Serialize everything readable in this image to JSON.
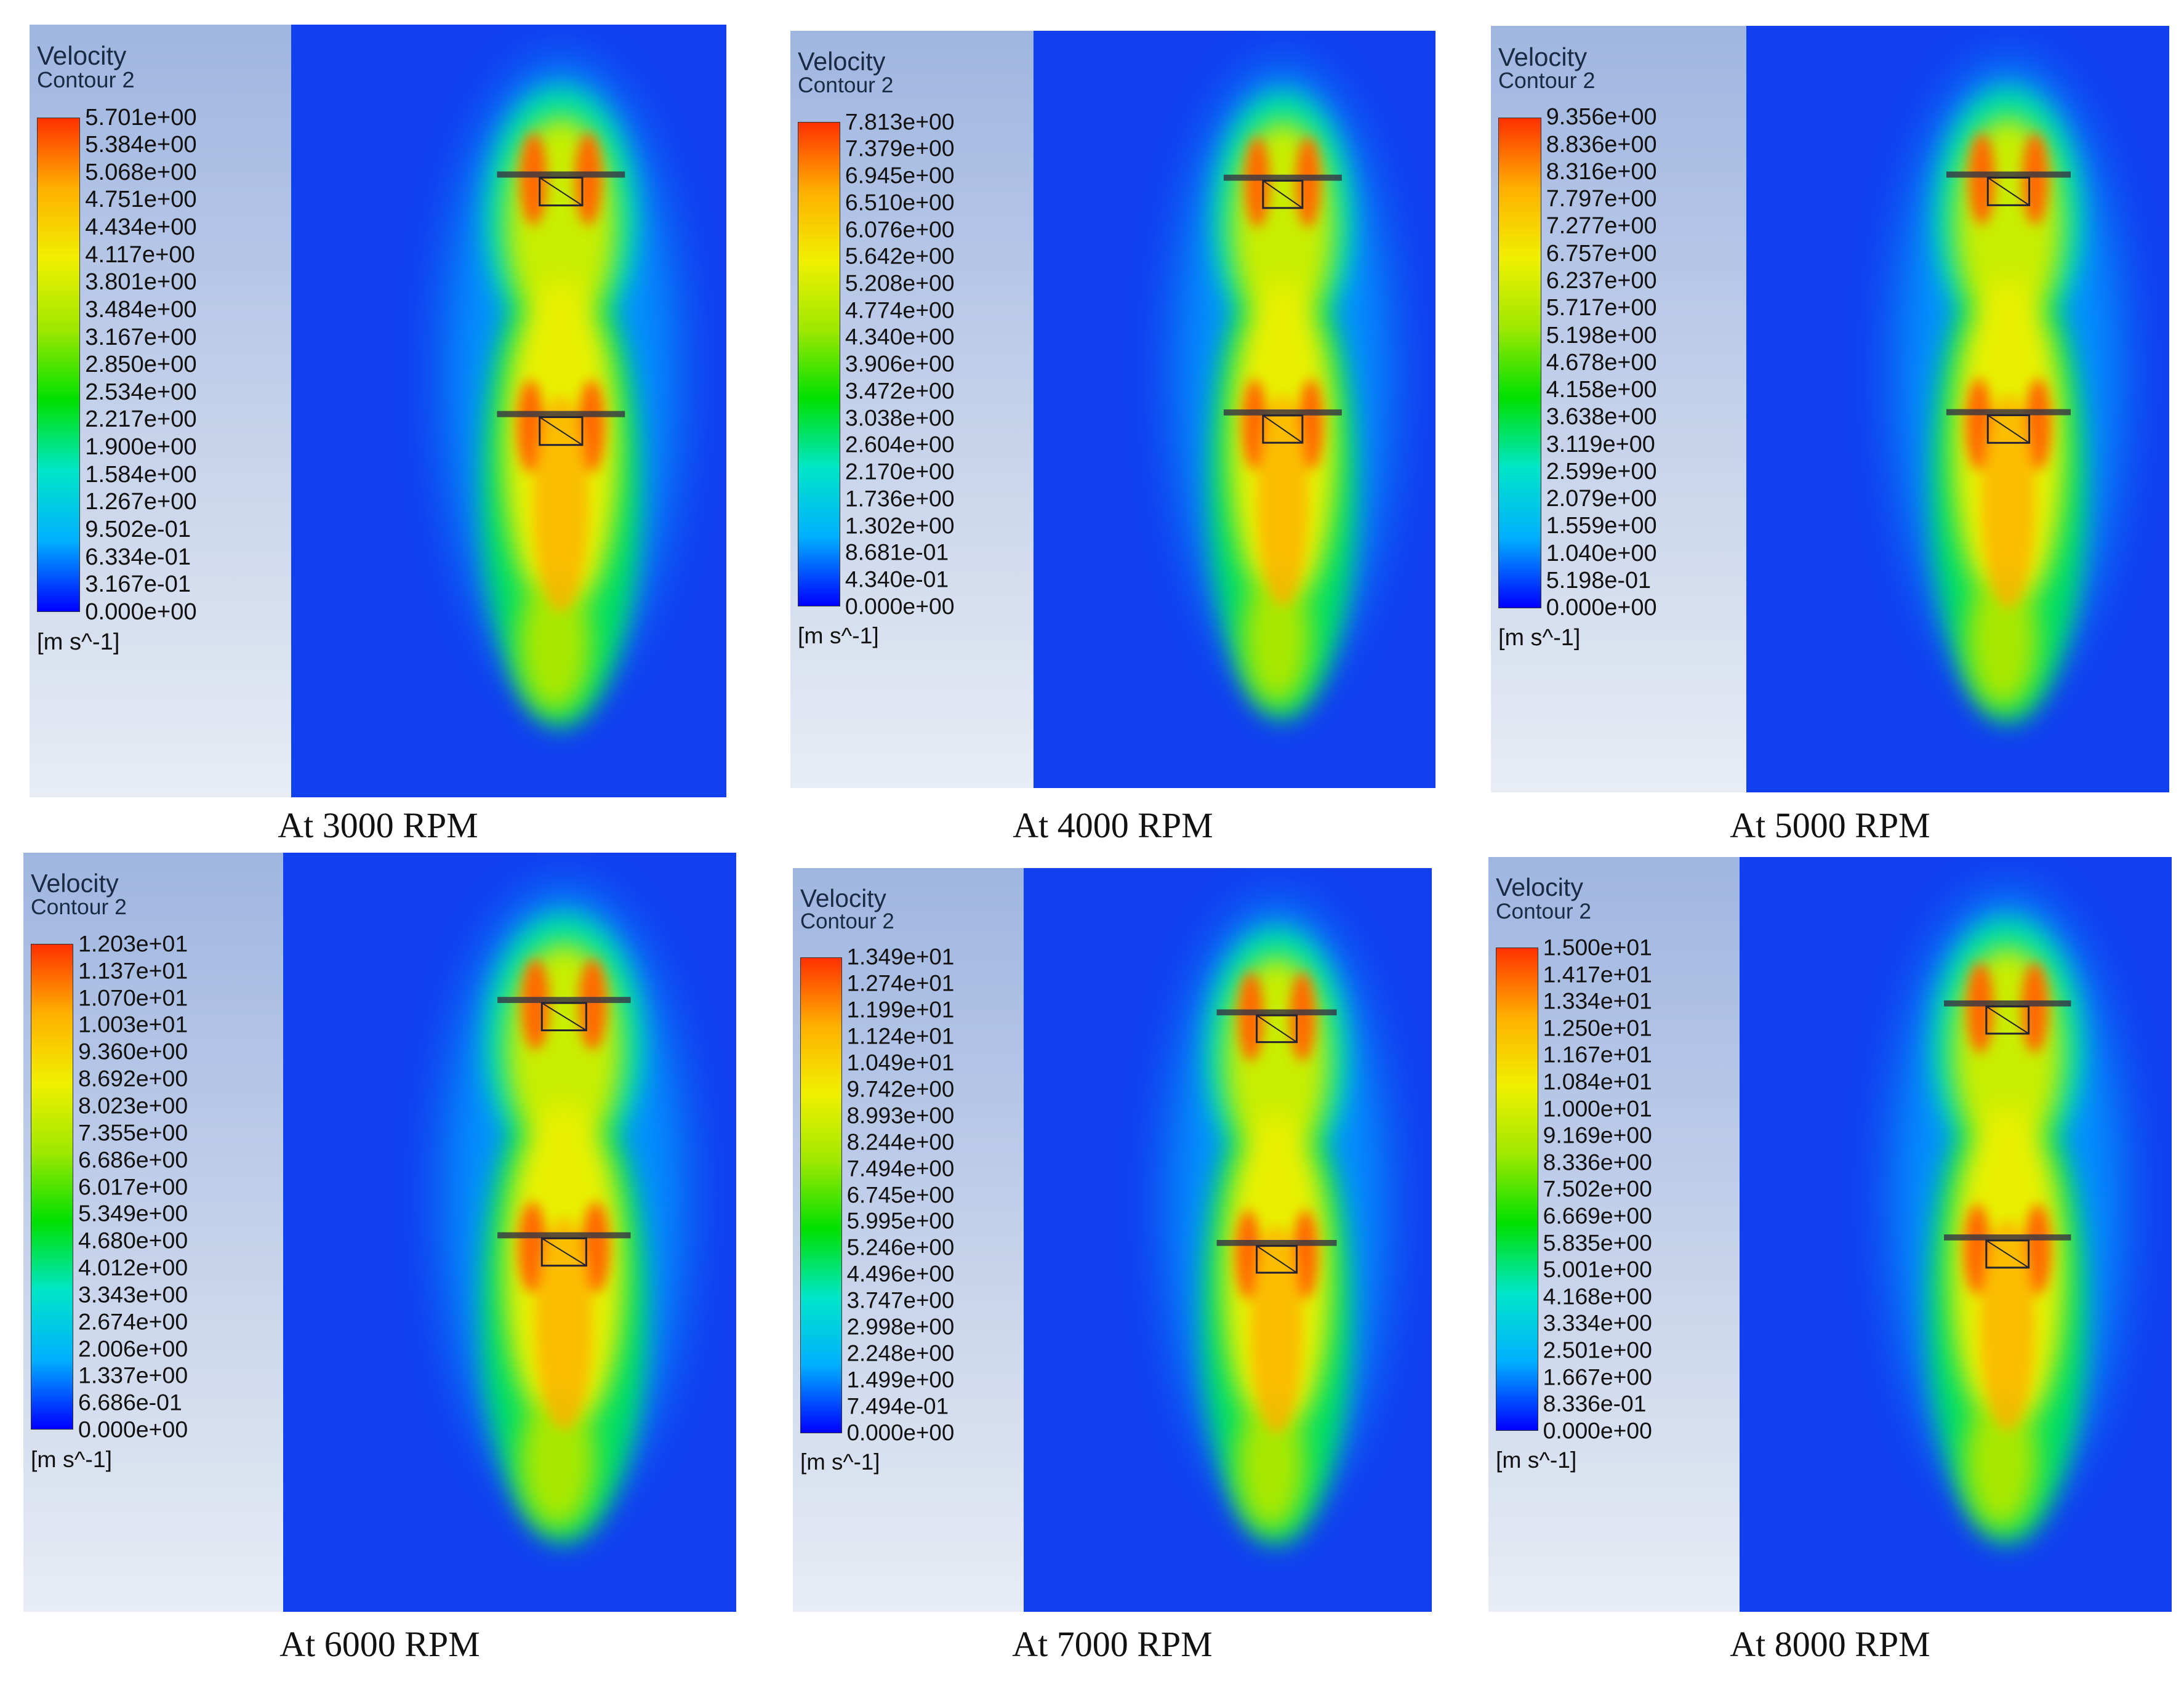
{
  "colors": {
    "legend_bg_top": "#9fb6e0",
    "legend_bg_bottom": "#e8ecf4",
    "field_bg": "#1040f0",
    "scale": [
      "#0000ff",
      "#00b0ff",
      "#00e6c8",
      "#00e000",
      "#9ee800",
      "#f0f000",
      "#ffb000",
      "#ff3000"
    ]
  },
  "panels": [
    {
      "legend_title_1": "Velocity",
      "legend_title_2": "Contour 2",
      "unit": "[m s^-1]",
      "ticks": [
        "5.701e+00",
        "5.384e+00",
        "5.068e+00",
        "4.751e+00",
        "4.434e+00",
        "4.117e+00",
        "3.801e+00",
        "3.484e+00",
        "3.167e+00",
        "2.850e+00",
        "2.534e+00",
        "2.217e+00",
        "1.900e+00",
        "1.584e+00",
        "1.267e+00",
        "9.502e-01",
        "6.334e-01",
        "3.167e-01",
        "0.000e+00"
      ],
      "caption": "At 3000 RPM"
    },
    {
      "legend_title_1": "Velocity",
      "legend_title_2": "Contour 2",
      "unit": "[m s^-1]",
      "ticks": [
        "7.813e+00",
        "7.379e+00",
        "6.945e+00",
        "6.510e+00",
        "6.076e+00",
        "5.642e+00",
        "5.208e+00",
        "4.774e+00",
        "4.340e+00",
        "3.906e+00",
        "3.472e+00",
        "3.038e+00",
        "2.604e+00",
        "2.170e+00",
        "1.736e+00",
        "1.302e+00",
        "8.681e-01",
        "4.340e-01",
        "0.000e+00"
      ],
      "caption": "At 4000 RPM"
    },
    {
      "legend_title_1": "Velocity",
      "legend_title_2": "Contour 2",
      "unit": "[m s^-1]",
      "ticks": [
        "9.356e+00",
        "8.836e+00",
        "8.316e+00",
        "7.797e+00",
        "7.277e+00",
        "6.757e+00",
        "6.237e+00",
        "5.717e+00",
        "5.198e+00",
        "4.678e+00",
        "4.158e+00",
        "3.638e+00",
        "3.119e+00",
        "2.599e+00",
        "2.079e+00",
        "1.559e+00",
        "1.040e+00",
        "5.198e-01",
        "0.000e+00"
      ],
      "caption": "At 5000 RPM"
    },
    {
      "legend_title_1": "Velocity",
      "legend_title_2": "Contour 2",
      "unit": "[m s^-1]",
      "ticks": [
        "1.203e+01",
        "1.137e+01",
        "1.070e+01",
        "1.003e+01",
        "9.360e+00",
        "8.692e+00",
        "8.023e+00",
        "7.355e+00",
        "6.686e+00",
        "6.017e+00",
        "5.349e+00",
        "4.680e+00",
        "4.012e+00",
        "3.343e+00",
        "2.674e+00",
        "2.006e+00",
        "1.337e+00",
        "6.686e-01",
        "0.000e+00"
      ],
      "caption": "At 6000 RPM"
    },
    {
      "legend_title_1": "Velocity",
      "legend_title_2": "Contour 2",
      "unit": "[m s^-1]",
      "ticks": [
        "1.349e+01",
        "1.274e+01",
        "1.199e+01",
        "1.124e+01",
        "1.049e+01",
        "9.742e+00",
        "8.993e+00",
        "8.244e+00",
        "7.494e+00",
        "6.745e+00",
        "5.995e+00",
        "5.246e+00",
        "4.496e+00",
        "3.747e+00",
        "2.998e+00",
        "2.248e+00",
        "1.499e+00",
        "7.494e-01",
        "0.000e+00"
      ],
      "caption": "At 7000 RPM"
    },
    {
      "legend_title_1": "Velocity",
      "legend_title_2": "Contour 2",
      "unit": "[m s^-1]",
      "ticks": [
        "1.500e+01",
        "1.417e+01",
        "1.334e+01",
        "1.250e+01",
        "1.167e+01",
        "1.084e+01",
        "1.000e+01",
        "9.169e+00",
        "8.336e+00",
        "7.502e+00",
        "6.669e+00",
        "5.835e+00",
        "5.001e+00",
        "4.168e+00",
        "3.334e+00",
        "2.501e+00",
        "1.667e+00",
        "8.336e-01",
        "0.000e+00"
      ],
      "caption": "At 8000 RPM"
    }
  ]
}
